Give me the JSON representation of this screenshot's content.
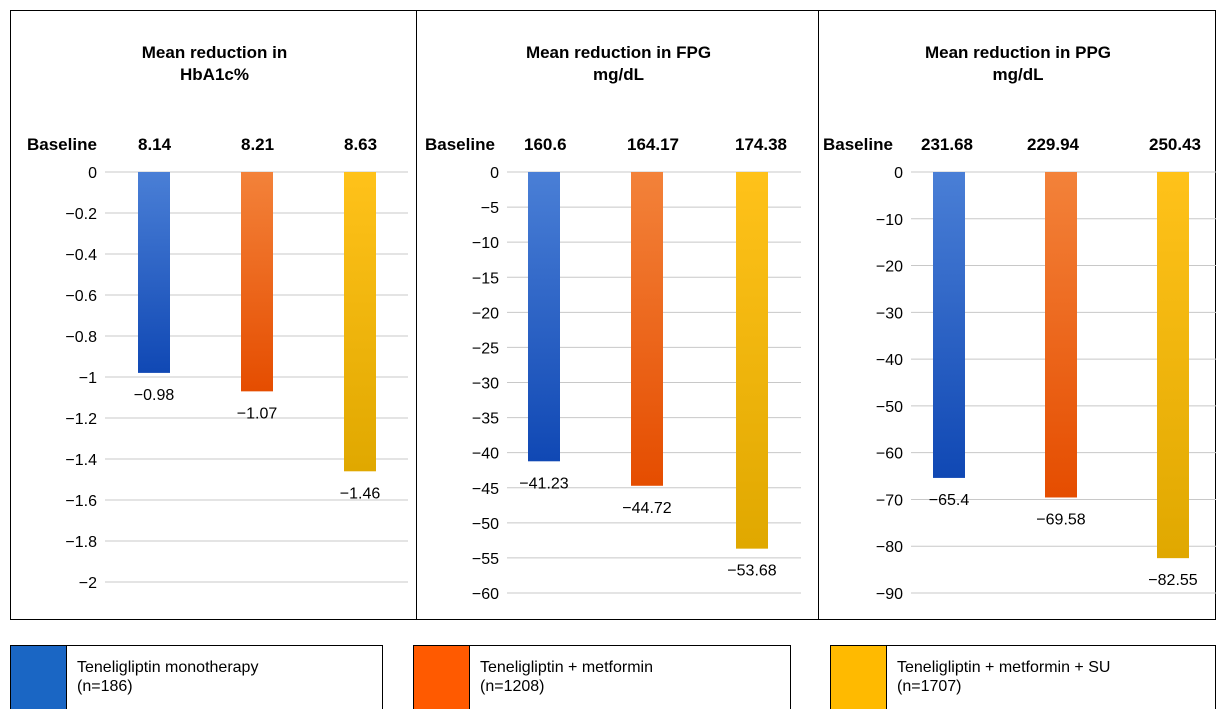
{
  "colors": {
    "blue": "#1f64c8",
    "orange": "#f06018",
    "yellow": "#f5b800",
    "grid": "#c8c8c8"
  },
  "legend": [
    {
      "name": "Teneligliptin monotherapy",
      "n": "(n=186)",
      "color": "#1a66c4"
    },
    {
      "name": "Teneligliptin + metformin",
      "n": "(n=1208)",
      "color": "#ff5a00"
    },
    {
      "name": "Teneligliptin + metformin + SU",
      "n": "(n=1707)",
      "color": "#ffba00"
    }
  ],
  "chart_data": [
    {
      "type": "bar",
      "title": [
        "Mean reduction in",
        "HbA1c%"
      ],
      "baseline_label": "Baseline",
      "baselines": [
        "8.14",
        "8.21",
        "8.63"
      ],
      "series": [
        "Teneligliptin monotherapy",
        "Teneligliptin + metformin",
        "Teneligliptin + metformin + SU"
      ],
      "values": [
        -0.98,
        -1.07,
        -1.46
      ],
      "value_labels": [
        "−0.98",
        "−1.07",
        "−1.46"
      ],
      "ylim": [
        -2,
        0
      ],
      "yticks": [
        "0",
        "−0.2",
        "−0.4",
        "−0.6",
        "−0.8",
        "−1",
        "−1.2",
        "−1.4",
        "−1.6",
        "−1.8",
        "−2"
      ],
      "grid": true
    },
    {
      "type": "bar",
      "title": [
        "Mean reduction in FPG",
        "mg/dL"
      ],
      "baseline_label": "Baseline",
      "baselines": [
        "160.6",
        "164.17",
        "174.38"
      ],
      "series": [
        "Teneligliptin monotherapy",
        "Teneligliptin + metformin",
        "Teneligliptin + metformin + SU"
      ],
      "values": [
        -41.23,
        -44.72,
        -53.68
      ],
      "value_labels": [
        "−41.23",
        "−44.72",
        "−53.68"
      ],
      "ylim": [
        -60,
        0
      ],
      "yticks": [
        "0",
        "−5",
        "−10",
        "−15",
        "−20",
        "−25",
        "−30",
        "−35",
        "−40",
        "−45",
        "−50",
        "−55",
        "−60"
      ],
      "grid": true
    },
    {
      "type": "bar",
      "title": [
        "Mean reduction in PPG",
        "mg/dL"
      ],
      "baseline_label": "Baseline",
      "baselines": [
        "231.68",
        "229.94",
        "250.43"
      ],
      "series": [
        "Teneligliptin monotherapy",
        "Teneligliptin + metformin",
        "Teneligliptin + metformin + SU"
      ],
      "values": [
        -65.4,
        -69.58,
        -82.55
      ],
      "value_labels": [
        "−65.4",
        "−69.58",
        "−82.55"
      ],
      "ylim": [
        -90,
        0
      ],
      "yticks": [
        "0",
        "−10",
        "−20",
        "−30",
        "−40",
        "−50",
        "−60",
        "−70",
        "−80",
        "−90"
      ],
      "grid": true
    }
  ]
}
